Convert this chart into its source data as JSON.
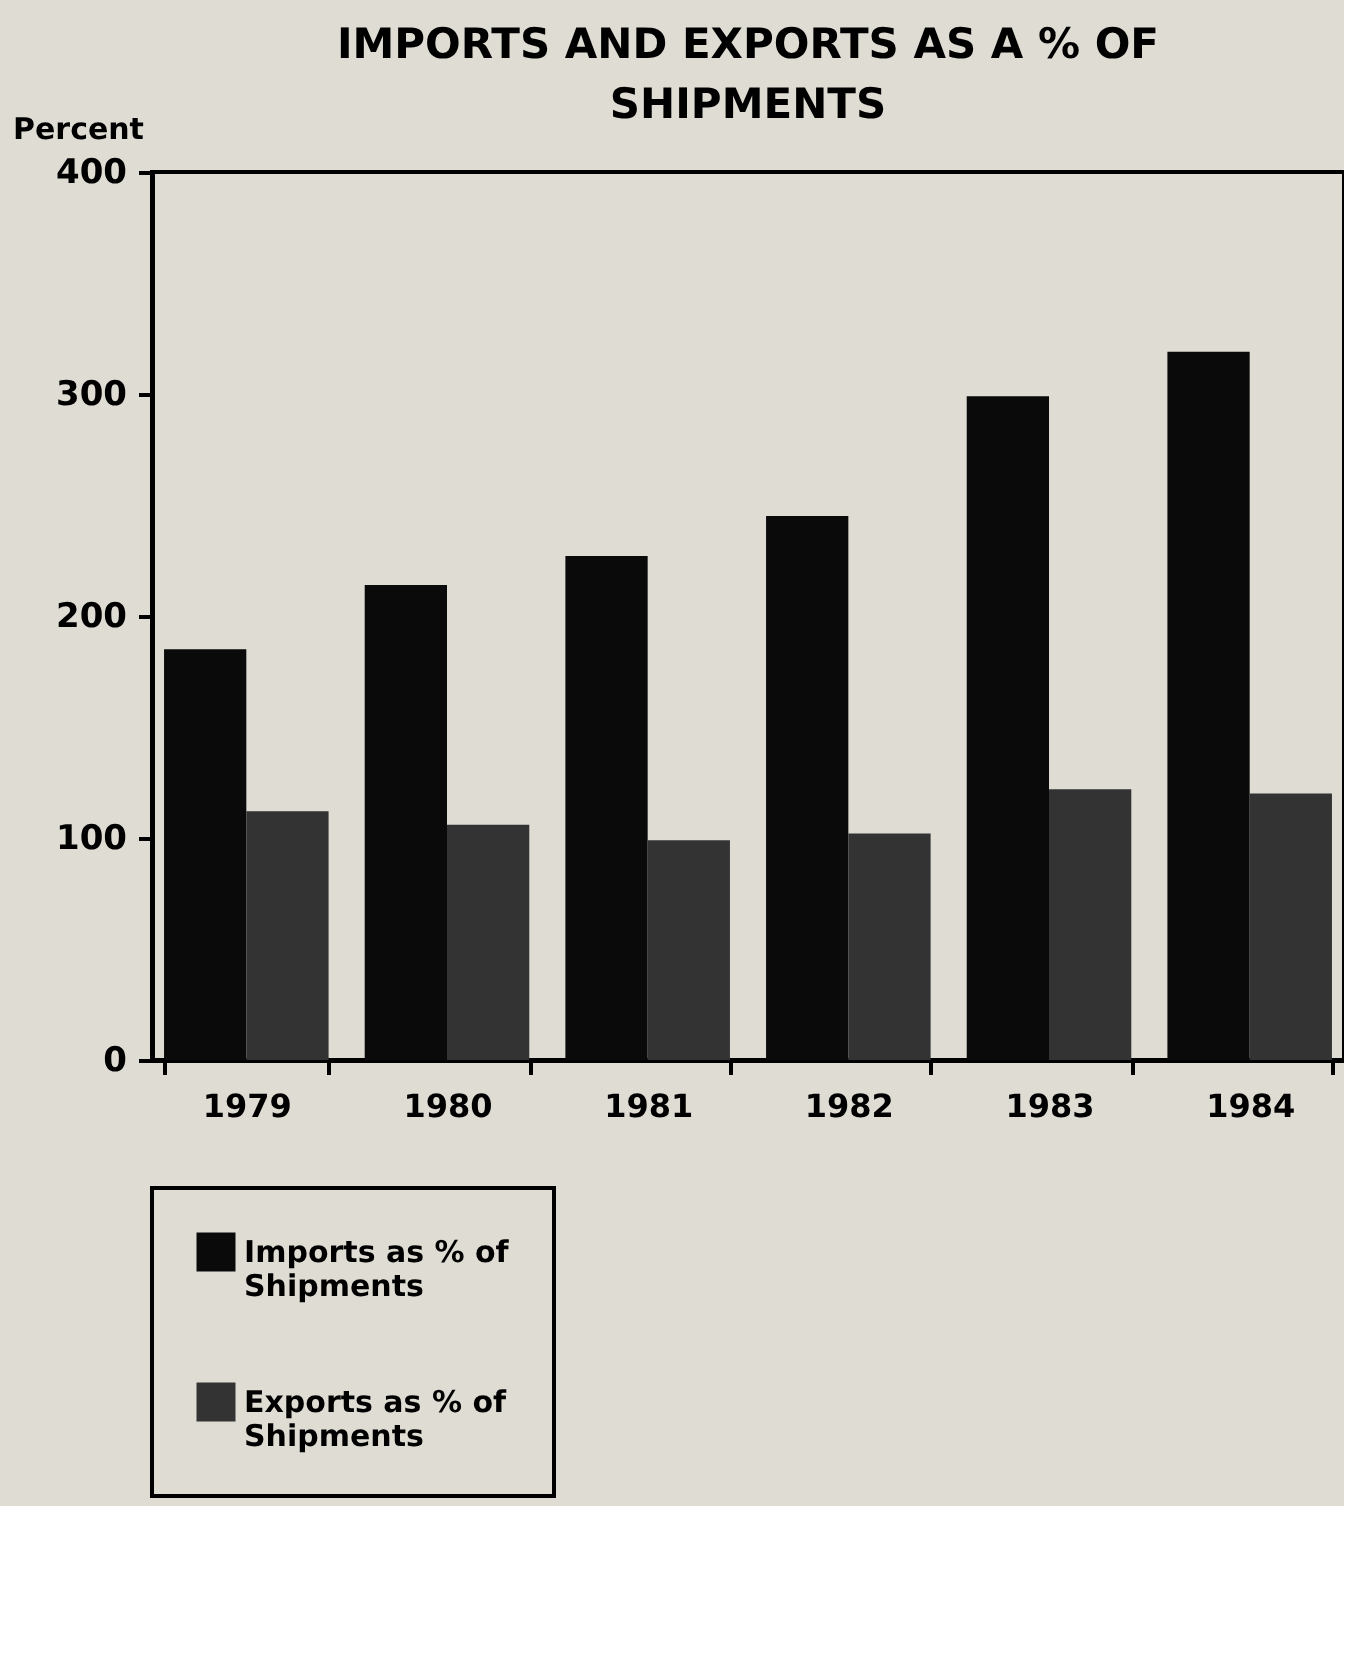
{
  "chart_data": {
    "type": "bar",
    "title": "IMPORTS AND EXPORTS AS A % OF SHIPMENTS",
    "ylabel": "Percent",
    "categories": [
      "1979",
      "1980",
      "1981",
      "1982",
      "1983",
      "1984"
    ],
    "series": [
      {
        "name": "Imports as % of Shipments",
        "color": "#0a0a0a",
        "values": [
          185,
          214,
          227,
          245,
          299,
          319
        ]
      },
      {
        "name": "Exports as % of Shipments",
        "color": "#333333",
        "values": [
          112,
          106,
          99,
          102,
          122,
          120
        ]
      }
    ],
    "ylim": [
      0,
      400
    ],
    "yticks": [
      0,
      100,
      200,
      300,
      400
    ],
    "grid": false,
    "legend": "bottom left"
  }
}
